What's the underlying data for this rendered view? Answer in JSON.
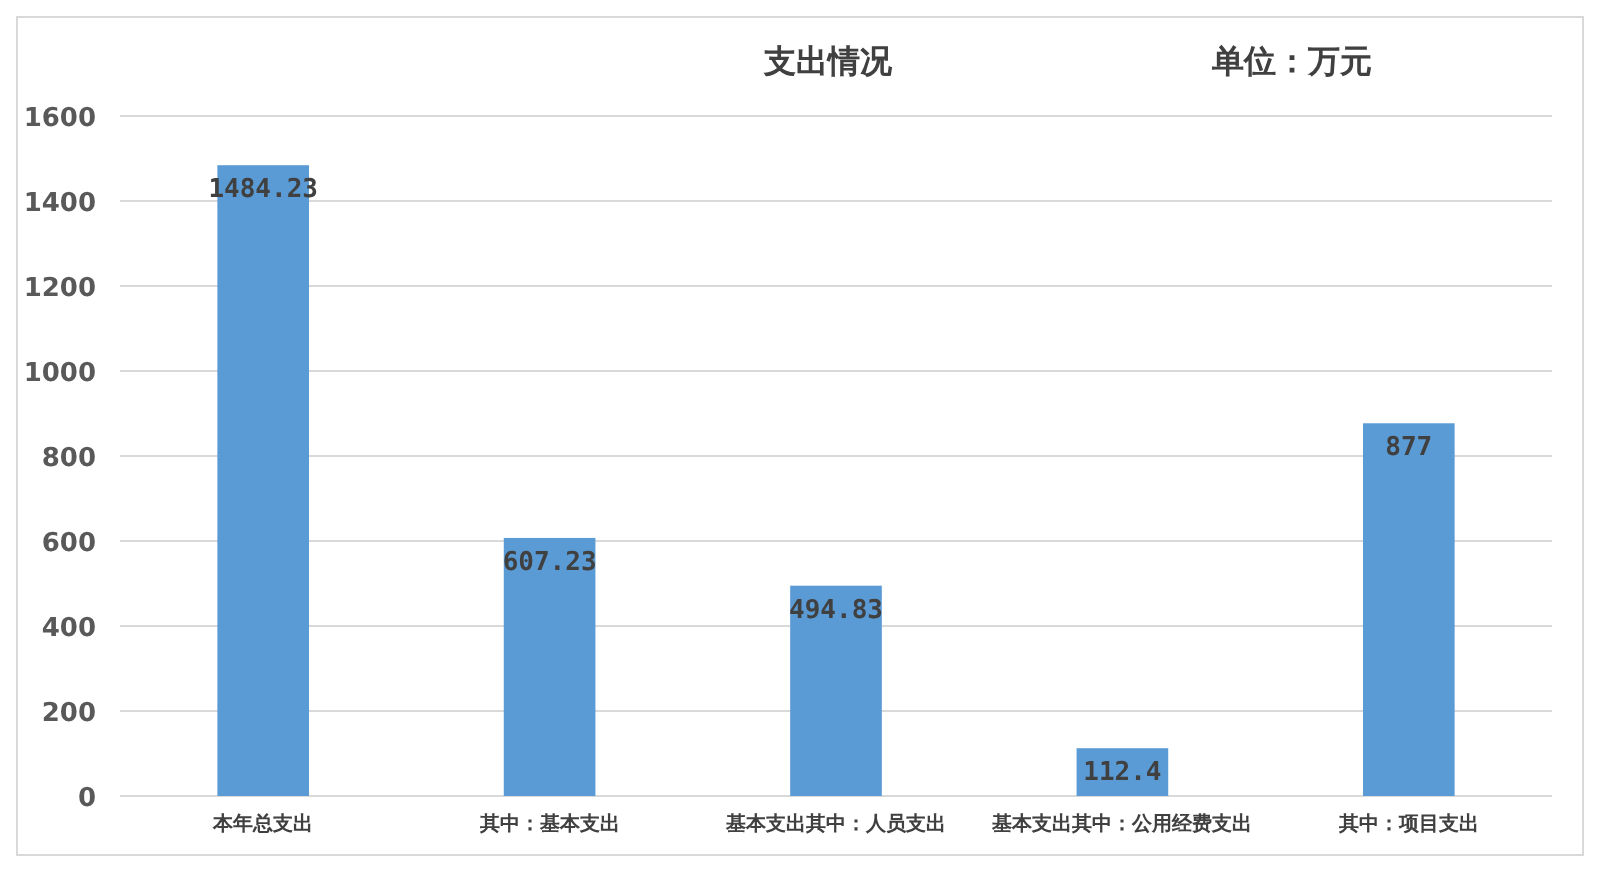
{
  "chart_data": {
    "type": "bar",
    "title": "支出情况",
    "subtitle": "单位：万元",
    "categories": [
      "本年总支出",
      "其中：基本支出",
      "基本支出其中：人员支出",
      "基本支出其中：公用经费支出",
      "其中：项目支出"
    ],
    "values": [
      1484.23,
      607.23,
      494.83,
      112.4,
      877
    ],
    "color": "#5b9bd5",
    "ylim": [
      0,
      1600
    ],
    "yticks": [
      0,
      200,
      400,
      600,
      800,
      1000,
      1200,
      1400,
      1600
    ],
    "grid": "y",
    "data_labels": true
  }
}
